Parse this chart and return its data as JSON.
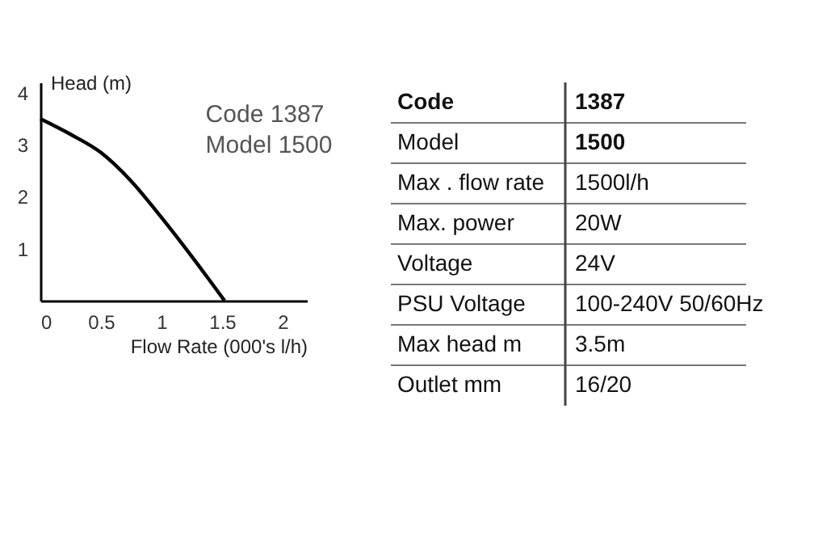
{
  "chart_data": {
    "type": "line",
    "xlabel": "Flow Rate (000's l/h)",
    "ylabel": "Head (m)",
    "x": [
      0,
      0.25,
      0.5,
      0.75,
      1.0,
      1.25,
      1.52
    ],
    "series": [
      {
        "color": "#000000",
        "values": [
          3.5,
          3.2,
          2.85,
          2.3,
          1.6,
          0.85,
          0
        ]
      }
    ],
    "xlim": [
      0,
      2.2
    ],
    "ylim": [
      0,
      4.2
    ],
    "xticks": [
      0,
      0.5,
      1,
      1.5,
      2
    ],
    "yticks": [
      1,
      2,
      3,
      4
    ],
    "grid": false,
    "marker": "none",
    "line_style": "solid",
    "annotations": [
      "Code 1387",
      "Model 1500",
      "Code",
      "1387",
      "Model",
      "1500",
      "Max . flow rate",
      "1500l/h",
      "Max. power",
      "20W",
      "Voltage",
      "24V",
      "PSU Voltage",
      "100-240V 50/60Hz",
      "Max head m",
      "3.5m",
      "Outlet mm",
      "16/20"
    ]
  }
}
